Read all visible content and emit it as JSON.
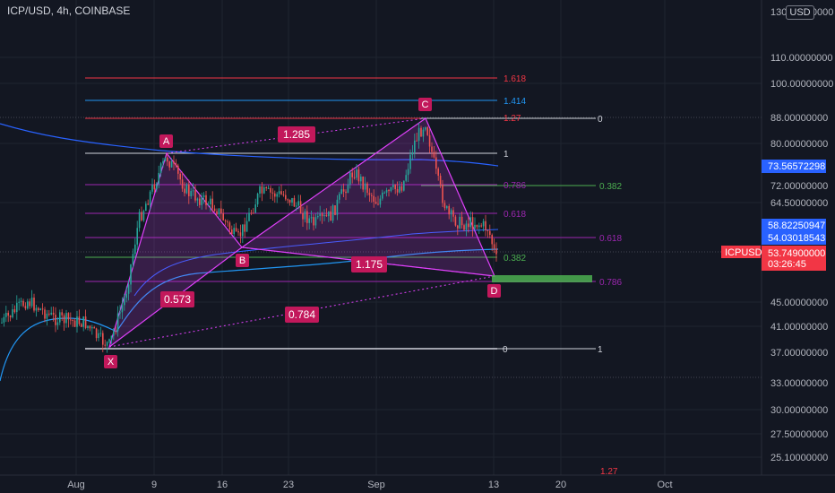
{
  "header": {
    "title": "ICP/USD, 4h, COINBASE",
    "currency": "USD"
  },
  "price_axis": {
    "ticks": [
      "130.00000000",
      "110.00000000",
      "100.00000000",
      "88.00000000",
      "80.00000000",
      "72.00000000",
      "64.50000000",
      "45.00000000",
      "41.00000000",
      "37.00000000",
      "33.00000000",
      "30.00000000",
      "27.50000000",
      "25.10000000"
    ],
    "tags": [
      {
        "text": "73.56572298",
        "color": "#2962ff"
      },
      {
        "text": "58.82250947",
        "color": "#2962ff"
      },
      {
        "text": "54.03018543",
        "color": "#2962ff"
      }
    ],
    "symbol_tag": {
      "symbol": "ICPUSD",
      "price": "53.74900000",
      "countdown": "03:26:45",
      "color": "#f23645"
    }
  },
  "time_axis": {
    "ticks": [
      "Aug",
      "9",
      "16",
      "23",
      "Sep",
      "13",
      "20",
      "Oct"
    ]
  },
  "pattern": {
    "points": [
      "X",
      "A",
      "B",
      "C",
      "D"
    ],
    "ratios": [
      "1.285",
      "0.573",
      "1.175",
      "0.784"
    ],
    "color": "#e040fb"
  },
  "fib_labels": {
    "top": [
      "1.618",
      "1.414",
      "1.27",
      "1",
      "0.786",
      "0.618"
    ],
    "right": [
      "0",
      "0.382",
      "0.618",
      "0.382",
      "0.786",
      "1"
    ],
    "bottom_zero": "0",
    "bottom_cut": "1.27"
  }
}
